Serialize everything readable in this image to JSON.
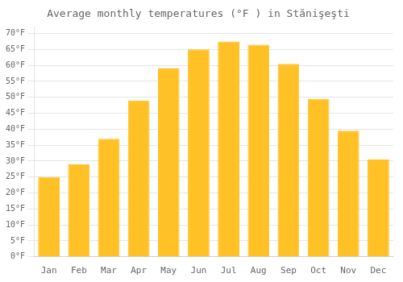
{
  "chart_data": {
    "type": "bar",
    "title": "Average monthly temperatures (°F ) in Stănişeşti",
    "categories": [
      "Jan",
      "Feb",
      "Mar",
      "Apr",
      "May",
      "Jun",
      "Jul",
      "Aug",
      "Sep",
      "Oct",
      "Nov",
      "Dec"
    ],
    "values": [
      25,
      29,
      37,
      49,
      59,
      65,
      67.5,
      66.5,
      60.5,
      49.5,
      39.5,
      30.5
    ],
    "color": "#FFC125",
    "ylim": [
      0,
      72
    ],
    "yticks": [
      {
        "value": 0,
        "label": "0°F"
      },
      {
        "value": 5,
        "label": "5°F"
      },
      {
        "value": 10,
        "label": "10°F"
      },
      {
        "value": 15,
        "label": "15°F"
      },
      {
        "value": 20,
        "label": "20°F"
      },
      {
        "value": 25,
        "label": "25°F"
      },
      {
        "value": 30,
        "label": "30°F"
      },
      {
        "value": 35,
        "label": "35°F"
      },
      {
        "value": 40,
        "label": "40°F"
      },
      {
        "value": 45,
        "label": "45°F"
      },
      {
        "value": 50,
        "label": "50°F"
      },
      {
        "value": 55,
        "label": "55°F"
      },
      {
        "value": 60,
        "label": "60°F"
      },
      {
        "value": 65,
        "label": "65°F"
      },
      {
        "value": 70,
        "label": "70°F"
      }
    ],
    "grid": true
  }
}
